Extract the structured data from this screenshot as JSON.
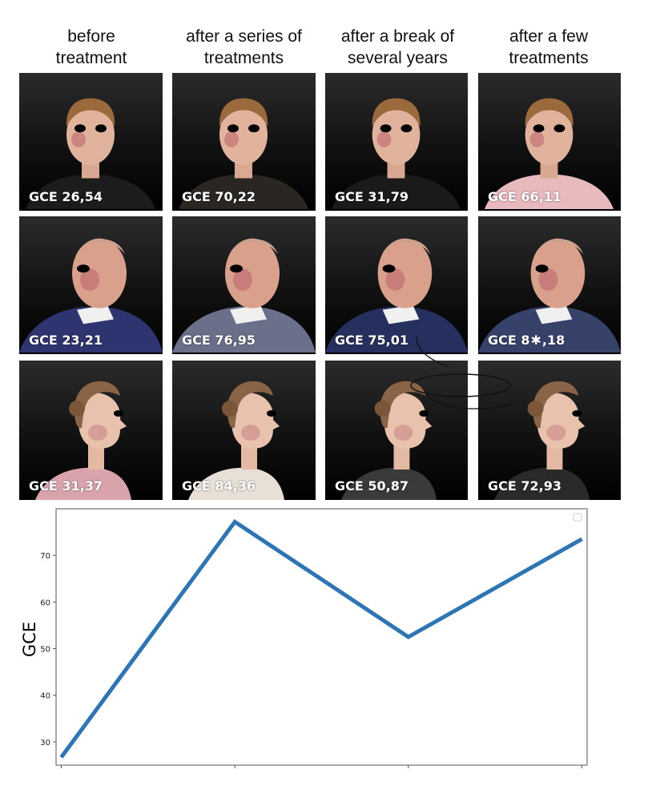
{
  "headers": [
    "before\ntreatment",
    "after a series of\ntreatments",
    "after a break of\nseveral years",
    "after a few\ntreatments"
  ],
  "grid": [
    [
      {
        "label": "GCE 26,54",
        "subject": "young-man-frontal",
        "shirt": "#1c1c1c"
      },
      {
        "label": "GCE 70,22",
        "subject": "young-man-frontal",
        "shirt": "#2a2622"
      },
      {
        "label": "GCE 31,79",
        "subject": "young-man-frontal",
        "shirt": "#1a1a1a"
      },
      {
        "label": "GCE 66,11",
        "subject": "young-man-frontal",
        "shirt": "#e8b9bd"
      }
    ],
    [
      {
        "label": "GCE 23,21",
        "subject": "older-man-three-quarter",
        "shirt": "#2e3470"
      },
      {
        "label": "GCE 76,95",
        "subject": "older-man-three-quarter",
        "shirt": "#6a6f8a"
      },
      {
        "label": "GCE 75,01",
        "subject": "older-man-three-quarter",
        "shirt": "#26305e"
      },
      {
        "label": "GCE  8",
        "label2": ",18",
        "subject": "older-man-three-quarter",
        "shirt": "#37426a"
      }
    ],
    [
      {
        "label": "GCE 31,37",
        "subject": "woman-profile",
        "shirt": "#d9a3ac"
      },
      {
        "label": "GCE 84,36",
        "subject": "woman-profile",
        "shirt": "#e8e0d6"
      },
      {
        "label": "GCE 50,87",
        "subject": "woman-profile",
        "shirt": "#3a3a3a"
      },
      {
        "label": "GCE 72,93",
        "subject": "woman-profile",
        "shirt": "#2a2a2a"
      }
    ]
  ],
  "chart_data": {
    "type": "line",
    "title": "",
    "xlabel": "",
    "ylabel": "GCE",
    "x": [
      0,
      1,
      2,
      3
    ],
    "series": [
      {
        "values": [
          26.7,
          77.2,
          52.5,
          73.5
        ],
        "color": "#2e75b6"
      }
    ],
    "ylim": [
      25,
      80
    ],
    "yticks": [
      30,
      40,
      50,
      60,
      70
    ],
    "xlim": [
      -0.03,
      3.03
    ],
    "grid": false
  }
}
